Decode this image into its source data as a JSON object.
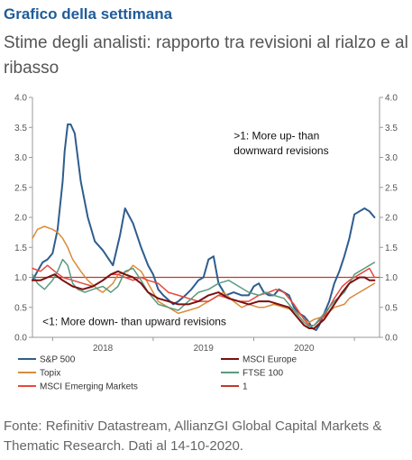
{
  "header": {
    "title": "Grafico della settimana",
    "subtitle": "Stime degli analisti: rapporto tra revisioni al rialzo e al ribasso"
  },
  "footer": {
    "source": "Fonte: Refinitiv Datastream, AllianzGI Global Capital Markets & Thematic Research. Dati al 14-10-2020."
  },
  "colors": {
    "title": "#1f5c99",
    "sp500": "#2e5d8e",
    "msci_europe": "#7a1010",
    "topix": "#d98b3a",
    "ftse100": "#5a9a80",
    "msci_em": "#e8483a",
    "one": "#c0392b"
  },
  "chart_data": {
    "type": "line",
    "title": "",
    "xlabel": "",
    "ylabel": "",
    "x_tick_labels": [
      "2018",
      "2019",
      "2020"
    ],
    "y_tick_labels": [
      "0.0",
      "0.5",
      "1.0",
      "1.5",
      "2.0",
      "2.5",
      "3.0",
      "3.5",
      "4.0"
    ],
    "ylim": [
      0,
      4
    ],
    "xlim": [
      2017.3,
      2020.75
    ],
    "y_axis_both_sides": true,
    "grid": false,
    "legend_position": "bottom",
    "annotations": [
      {
        "text": ">1: More up- than",
        "x": 2019.3,
        "y": 3.3
      },
      {
        "text": "downward revisions",
        "x": 2019.3,
        "y": 3.05
      },
      {
        "text": "<1: More down- than upward revisions",
        "x": 2017.4,
        "y": 0.2
      }
    ],
    "series": [
      {
        "name": "S&P 500",
        "color_key": "sp500",
        "width": 2,
        "x": [
          2017.3,
          2017.35,
          2017.4,
          2017.45,
          2017.5,
          2017.55,
          2017.6,
          2017.62,
          2017.65,
          2017.68,
          2017.72,
          2017.78,
          2017.85,
          2017.92,
          2018.0,
          2018.1,
          2018.17,
          2018.22,
          2018.3,
          2018.38,
          2018.45,
          2018.5,
          2018.55,
          2018.6,
          2018.7,
          2018.75,
          2018.82,
          2018.88,
          2018.95,
          2019.0,
          2019.05,
          2019.1,
          2019.15,
          2019.22,
          2019.3,
          2019.38,
          2019.45,
          2019.5,
          2019.55,
          2019.6,
          2019.65,
          2019.7,
          2019.75,
          2019.8,
          2019.85,
          2019.9,
          2019.95,
          2020.0,
          2020.05,
          2020.08,
          2020.12,
          2020.15,
          2020.2,
          2020.25,
          2020.3,
          2020.35,
          2020.4,
          2020.45,
          2020.5,
          2020.55,
          2020.6,
          2020.65,
          2020.7
        ],
        "y": [
          0.95,
          1.1,
          1.25,
          1.3,
          1.4,
          1.8,
          2.6,
          3.1,
          3.55,
          3.55,
          3.4,
          2.6,
          2.0,
          1.6,
          1.45,
          1.2,
          1.7,
          2.15,
          1.9,
          1.5,
          1.2,
          1.05,
          0.8,
          0.7,
          0.55,
          0.6,
          0.7,
          0.8,
          0.95,
          1.0,
          1.3,
          1.35,
          0.9,
          0.7,
          0.75,
          0.7,
          0.7,
          0.85,
          0.9,
          0.75,
          0.7,
          0.7,
          0.8,
          0.75,
          0.7,
          0.5,
          0.4,
          0.35,
          0.25,
          0.15,
          0.12,
          0.2,
          0.4,
          0.6,
          0.9,
          1.1,
          1.35,
          1.65,
          2.05,
          2.1,
          2.15,
          2.1,
          2.0
        ]
      },
      {
        "name": "Topix",
        "color_key": "topix",
        "width": 1.5,
        "x": [
          2017.3,
          2017.35,
          2017.42,
          2017.5,
          2017.55,
          2017.6,
          2017.65,
          2017.7,
          2017.78,
          2017.85,
          2017.95,
          2018.0,
          2018.1,
          2018.15,
          2018.25,
          2018.3,
          2018.38,
          2018.45,
          2018.55,
          2018.65,
          2018.75,
          2018.85,
          2018.95,
          2019.0,
          2019.1,
          2019.2,
          2019.3,
          2019.38,
          2019.45,
          2019.55,
          2019.6,
          2019.7,
          2019.8,
          2019.9,
          2019.98,
          2020.0,
          2020.05,
          2020.1,
          2020.2,
          2020.3,
          2020.4,
          2020.45,
          2020.5,
          2020.55,
          2020.6,
          2020.65,
          2020.7
        ],
        "y": [
          1.65,
          1.8,
          1.85,
          1.8,
          1.75,
          1.65,
          1.5,
          1.3,
          1.1,
          0.95,
          0.8,
          0.75,
          0.9,
          1.05,
          1.1,
          1.2,
          1.1,
          0.9,
          0.6,
          0.5,
          0.4,
          0.45,
          0.5,
          0.55,
          0.65,
          0.75,
          0.6,
          0.5,
          0.55,
          0.5,
          0.5,
          0.55,
          0.5,
          0.45,
          0.35,
          0.3,
          0.25,
          0.3,
          0.35,
          0.5,
          0.55,
          0.65,
          0.7,
          0.75,
          0.8,
          0.85,
          0.9
        ]
      },
      {
        "name": "MSCI Emerging Markets",
        "color_key": "msci_em",
        "width": 1.5,
        "x": [
          2017.3,
          2017.38,
          2017.45,
          2017.52,
          2017.6,
          2017.7,
          2017.8,
          2017.9,
          2018.0,
          2018.08,
          2018.15,
          2018.22,
          2018.3,
          2018.38,
          2018.45,
          2018.55,
          2018.65,
          2018.75,
          2018.85,
          2018.95,
          2019.05,
          2019.15,
          2019.25,
          2019.35,
          2019.45,
          2019.55,
          2019.65,
          2019.72,
          2019.8,
          2019.9,
          2020.0,
          2020.05,
          2020.1,
          2020.2,
          2020.3,
          2020.38,
          2020.45,
          2020.5,
          2020.55,
          2020.6,
          2020.65,
          2020.7
        ],
        "y": [
          1.15,
          1.1,
          1.2,
          1.1,
          1.0,
          0.95,
          0.9,
          0.85,
          0.95,
          1.05,
          1.05,
          1.0,
          0.95,
          1.0,
          0.95,
          0.9,
          0.75,
          0.7,
          0.65,
          0.6,
          0.6,
          0.7,
          0.65,
          0.6,
          0.6,
          0.7,
          0.75,
          0.8,
          0.75,
          0.55,
          0.3,
          0.2,
          0.2,
          0.35,
          0.65,
          0.85,
          0.95,
          1.0,
          1.05,
          1.1,
          1.15,
          1.0
        ]
      },
      {
        "name": "FTSE 100",
        "color_key": "ftse100",
        "width": 1.5,
        "x": [
          2017.3,
          2017.35,
          2017.42,
          2017.5,
          2017.55,
          2017.6,
          2017.65,
          2017.7,
          2017.75,
          2017.82,
          2017.9,
          2018.0,
          2018.08,
          2018.15,
          2018.22,
          2018.3,
          2018.38,
          2018.45,
          2018.55,
          2018.65,
          2018.75,
          2018.85,
          2018.95,
          2019.05,
          2019.15,
          2019.25,
          2019.35,
          2019.45,
          2019.55,
          2019.62,
          2019.7,
          2019.8,
          2019.9,
          2020.0,
          2020.05,
          2020.1,
          2020.2,
          2020.3,
          2020.4,
          2020.45,
          2020.5,
          2020.55,
          2020.6,
          2020.65,
          2020.7
        ],
        "y": [
          1.05,
          0.9,
          0.8,
          0.95,
          1.1,
          1.3,
          1.2,
          0.9,
          0.8,
          0.75,
          0.8,
          0.85,
          0.75,
          0.85,
          1.1,
          1.15,
          0.95,
          0.75,
          0.55,
          0.5,
          0.45,
          0.6,
          0.75,
          0.8,
          0.9,
          0.95,
          0.85,
          0.75,
          0.7,
          0.75,
          0.7,
          0.65,
          0.45,
          0.25,
          0.18,
          0.2,
          0.4,
          0.6,
          0.75,
          0.9,
          1.05,
          1.1,
          1.15,
          1.2,
          1.25
        ]
      },
      {
        "name": "MSCI Europe",
        "color_key": "msci_europe",
        "width": 2,
        "x": [
          2017.3,
          2017.38,
          2017.45,
          2017.52,
          2017.6,
          2017.7,
          2017.8,
          2017.9,
          2018.0,
          2018.08,
          2018.15,
          2018.22,
          2018.3,
          2018.38,
          2018.45,
          2018.55,
          2018.65,
          2018.75,
          2018.85,
          2018.95,
          2019.05,
          2019.15,
          2019.25,
          2019.35,
          2019.45,
          2019.55,
          2019.65,
          2019.75,
          2019.85,
          2019.95,
          2020.0,
          2020.05,
          2020.1,
          2020.2,
          2020.3,
          2020.38,
          2020.45,
          2020.5,
          2020.55,
          2020.6,
          2020.65,
          2020.7
        ],
        "y": [
          0.95,
          0.95,
          1.0,
          1.05,
          0.95,
          0.85,
          0.8,
          0.85,
          0.95,
          1.05,
          1.1,
          1.05,
          1.0,
          0.9,
          0.75,
          0.65,
          0.6,
          0.55,
          0.55,
          0.6,
          0.7,
          0.75,
          0.65,
          0.6,
          0.55,
          0.6,
          0.6,
          0.55,
          0.5,
          0.3,
          0.2,
          0.15,
          0.15,
          0.3,
          0.55,
          0.75,
          0.9,
          0.95,
          1.0,
          1.0,
          0.95,
          0.95
        ]
      }
    ],
    "reference_line": {
      "name": "1",
      "y": 1.0,
      "color_key": "one"
    },
    "legend": [
      {
        "label": "S&P 500",
        "color_key": "sp500"
      },
      {
        "label": "MSCI Europe",
        "color_key": "msci_europe"
      },
      {
        "label": "Topix",
        "color_key": "topix"
      },
      {
        "label": "FTSE 100",
        "color_key": "ftse100"
      },
      {
        "label": "MSCI Emerging Markets",
        "color_key": "msci_em"
      },
      {
        "label": "1",
        "color_key": "one"
      }
    ]
  }
}
